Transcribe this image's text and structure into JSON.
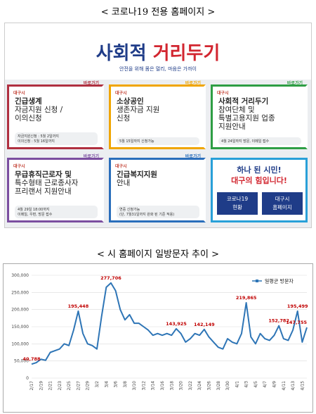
{
  "caption_top": "< 코로나19 전용 홈페이지 >",
  "banner": {
    "title_lead": "사회적",
    "title_main": "거리두기",
    "slogan": "안전을 위해 몸은 멀리, 마음은 가까이"
  },
  "cards": [
    {
      "tag": "대구시",
      "link": "바로가기",
      "lines": [
        "긴급생계",
        "자금지원 신청 /",
        "이의신청"
      ],
      "notes": [
        "자금지원신청 : 5월 2일까지",
        "이의신청 : 5월 16일까지"
      ]
    },
    {
      "tag": "대구시",
      "link": "바로가기",
      "lines": [
        "소상공인",
        "생존자금 지원",
        "신청"
      ],
      "notes": [
        "5월 15일까지 신청가능"
      ]
    },
    {
      "tag": "대구시",
      "link": "바로가기",
      "lines": [
        "사회적 거리두기",
        "참여단체 및",
        "특별고용지원 업종",
        "지원안내"
      ],
      "notes": [
        "4월 24일까지 방문, 이메일 접수"
      ]
    },
    {
      "tag": "대구시",
      "link": "바로가기",
      "lines": [
        "무급휴직근로자 및",
        "특수형태 근로종사자",
        "프리랜서 지원안내"
      ],
      "notes": [
        "4월 29일 18:00까지",
        "이메일, 우편, 방문 접수"
      ]
    },
    {
      "tag": "대구시",
      "link": "바로가기",
      "lines": [
        "긴급복지지원",
        "안내"
      ],
      "notes": [
        "연중 신청가능",
        "(단, 7월31일까지 완화 된 기준 적용)"
      ]
    }
  ],
  "promo": {
    "lines": [
      "하나 된 시민!",
      "대구의 힘입니다!"
    ],
    "buttons": [
      [
        "코로나19",
        "현황"
      ],
      [
        "대구시",
        "홈페이지"
      ]
    ]
  },
  "caption_chart": "< 시 홈페이지 일방문자 추이 >",
  "chart_data": {
    "type": "line",
    "categories": [
      "2/17",
      null,
      "2/19",
      null,
      "2/21",
      null,
      "2/23",
      null,
      "2/25",
      null,
      "2/27",
      null,
      "2/29",
      null,
      "3/2",
      null,
      "3/4",
      null,
      "3/6",
      null,
      "3/8",
      null,
      "3/10",
      null,
      "3/12",
      null,
      "3/14",
      null,
      "3/16",
      null,
      "3/18",
      null,
      "3/20",
      null,
      "3/22",
      null,
      "3/24",
      null,
      "3/26",
      null,
      "3/28",
      null,
      "3/30",
      null,
      "4/1",
      null,
      "4/3",
      null,
      "4/5",
      null,
      "4/7",
      null,
      "4/9",
      null,
      "4/11",
      null,
      "4/13",
      null,
      "4/15",
      null
    ],
    "series": [
      {
        "name": "일평균 방문자",
        "color": "#2e75b6",
        "values": [
          40788,
          45000,
          55000,
          52000,
          75000,
          80000,
          85000,
          100000,
          95000,
          140000,
          195448,
          130000,
          100000,
          95000,
          85000,
          180000,
          265000,
          277706,
          255000,
          200000,
          170000,
          185000,
          160000,
          160000,
          150000,
          140000,
          125000,
          130000,
          125000,
          130000,
          125000,
          143925,
          130000,
          105000,
          115000,
          130000,
          125000,
          142149,
          120000,
          105000,
          90000,
          85000,
          115000,
          105000,
          100000,
          130000,
          219865,
          120000,
          100000,
          130000,
          115000,
          110000,
          125000,
          152782,
          115000,
          110000,
          140000,
          195499,
          105000,
          147755
        ],
        "value_labels": [
          "40,788",
          null,
          null,
          null,
          null,
          null,
          null,
          null,
          null,
          null,
          "195,448",
          null,
          null,
          null,
          null,
          null,
          null,
          "277,706",
          null,
          null,
          null,
          null,
          null,
          null,
          null,
          null,
          null,
          null,
          null,
          null,
          null,
          "143,925",
          null,
          null,
          null,
          null,
          null,
          "142,149",
          null,
          null,
          null,
          null,
          null,
          null,
          null,
          null,
          "219,865",
          null,
          null,
          null,
          null,
          null,
          null,
          "152,782",
          null,
          null,
          null,
          "195,499",
          null,
          "147,755"
        ]
      }
    ],
    "ylim": [
      0,
      300000
    ],
    "yticks": [
      0,
      {
        "value": 50000,
        "label": "50,000"
      },
      {
        "value": 100000,
        "label": "100,000"
      },
      {
        "value": 150000,
        "label": "150,000"
      },
      {
        "value": 200000,
        "label": "200,000"
      },
      {
        "value": 250000,
        "label": "250,000"
      },
      {
        "value": 300000,
        "label": "300,000"
      }
    ],
    "grid": true,
    "legend": "top-right",
    "label_color": "#c00000"
  }
}
